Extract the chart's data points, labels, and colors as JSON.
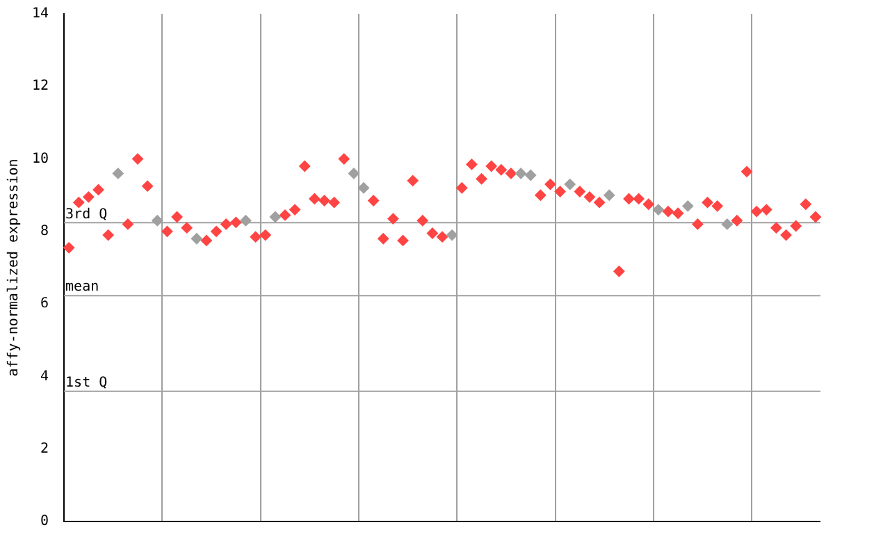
{
  "chart_data": {
    "type": "scatter",
    "ylabel": "affy-normalized expression",
    "categories": [
      null,
      null,
      null,
      null,
      null,
      null,
      null,
      null,
      null,
      null,
      null,
      null,
      null,
      null,
      null,
      null,
      null,
      null,
      null,
      null,
      null,
      null,
      null,
      null,
      null,
      null,
      null,
      null,
      null,
      null,
      null,
      null,
      null,
      null,
      null,
      null,
      null,
      null,
      null,
      null,
      null,
      null,
      null,
      null,
      null,
      null,
      null,
      null,
      null,
      null,
      null,
      null,
      null,
      null,
      null,
      null,
      null,
      null,
      null,
      null,
      null,
      null,
      null,
      null,
      null,
      null,
      null,
      null,
      null,
      null,
      null,
      null,
      null,
      null,
      null,
      null,
      null
    ],
    "values": [
      7.55,
      8.8,
      8.95,
      9.15,
      7.9,
      9.6,
      8.2,
      10.0,
      9.25,
      8.3,
      8.0,
      8.4,
      8.1,
      7.8,
      7.75,
      8.0,
      8.2,
      8.25,
      8.3,
      7.85,
      7.9,
      8.4,
      8.45,
      8.6,
      9.8,
      8.9,
      8.85,
      8.8,
      10.0,
      9.6,
      9.2,
      8.85,
      7.8,
      8.35,
      7.75,
      9.4,
      8.3,
      7.95,
      7.85,
      7.9,
      9.2,
      9.85,
      9.45,
      9.8,
      9.7,
      9.6,
      9.6,
      9.55,
      9.0,
      9.3,
      9.1,
      9.3,
      9.1,
      8.95,
      8.8,
      9.0,
      6.9,
      8.9,
      8.9,
      8.75,
      8.6,
      8.55,
      8.5,
      8.7,
      8.2,
      8.8,
      8.7,
      8.2,
      8.3,
      9.65,
      8.55,
      8.6,
      8.1,
      7.9,
      8.15,
      8.75,
      8.4
    ],
    "colors": [
      "#ff4444",
      "#ff4444",
      "#ff4444",
      "#ff4444",
      "#ff4444",
      "#a0a0a0",
      "#ff4444",
      "#ff4444",
      "#ff4444",
      "#a0a0a0",
      "#ff4444",
      "#ff4444",
      "#ff4444",
      "#a0a0a0",
      "#ff4444",
      "#ff4444",
      "#ff4444",
      "#ff4444",
      "#a0a0a0",
      "#ff4444",
      "#ff4444",
      "#a0a0a0",
      "#ff4444",
      "#ff4444",
      "#ff4444",
      "#ff4444",
      "#ff4444",
      "#ff4444",
      "#ff4444",
      "#a0a0a0",
      "#a0a0a0",
      "#ff4444",
      "#ff4444",
      "#ff4444",
      "#ff4444",
      "#ff4444",
      "#ff4444",
      "#ff4444",
      "#ff4444",
      "#a0a0a0",
      "#ff4444",
      "#ff4444",
      "#ff4444",
      "#ff4444",
      "#ff4444",
      "#ff4444",
      "#a0a0a0",
      "#a0a0a0",
      "#ff4444",
      "#ff4444",
      "#ff4444",
      "#a0a0a0",
      "#ff4444",
      "#ff4444",
      "#ff4444",
      "#a0a0a0",
      "#ff4444",
      "#ff4444",
      "#ff4444",
      "#ff4444",
      "#a0a0a0",
      "#ff4444",
      "#ff4444",
      "#a0a0a0",
      "#ff4444",
      "#ff4444",
      "#ff4444",
      "#a0a0a0",
      "#ff4444",
      "#ff4444",
      "#ff4444",
      "#ff4444",
      "#ff4444",
      "#ff4444",
      "#ff4444",
      "#ff4444",
      "#ff4444"
    ],
    "ylim": [
      0,
      14
    ],
    "yticks": [
      0,
      2,
      4,
      6,
      8,
      10,
      12,
      14
    ],
    "marker": "diamond",
    "grid": "x",
    "legend": false,
    "tick_labels": "y",
    "ref_lines": [
      {
        "axis": "y",
        "value": 8.24,
        "label": "3rd Q",
        "color": "#a0a0a0"
      },
      {
        "axis": "y",
        "value": 6.23,
        "label": "mean",
        "color": "#a0a0a0"
      },
      {
        "axis": "y",
        "value": 3.59,
        "label": "1st Q",
        "color": "#a0a0a0"
      }
    ]
  }
}
